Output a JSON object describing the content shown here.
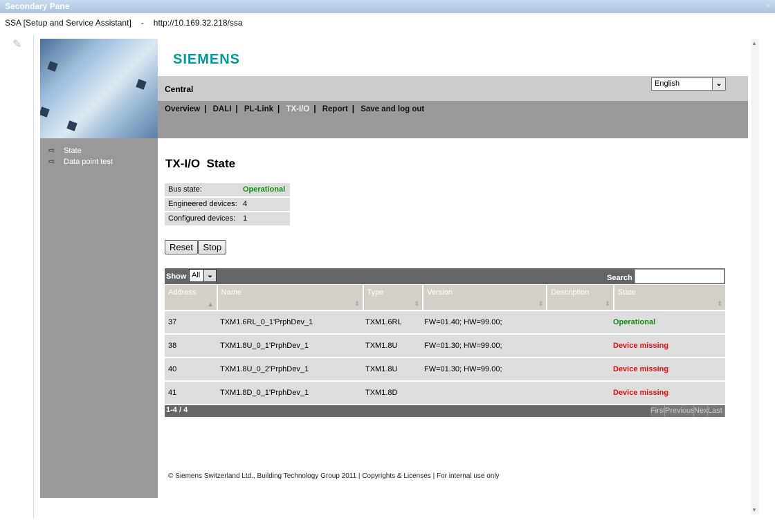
{
  "window": {
    "title": "Secondary Pane",
    "close": "×"
  },
  "address": {
    "app": "SSA [Setup and Service Assistant]",
    "dash": "-",
    "url": "http://10.169.32.218/ssa"
  },
  "logo": "SIEMENS",
  "header": {
    "site": "Central",
    "language": "English"
  },
  "nav": [
    {
      "label": "Overview"
    },
    {
      "label": "DALI"
    },
    {
      "label": "PL-Link"
    },
    {
      "label": "TX-I/O",
      "active": true
    },
    {
      "label": "Report"
    },
    {
      "label": "Save and log out"
    }
  ],
  "nav_sep": "|",
  "sidebar": {
    "items": [
      {
        "label": "State"
      },
      {
        "label": "Data point test"
      }
    ]
  },
  "page": {
    "title": "TX-I/O  State"
  },
  "info": [
    {
      "label": "Bus state:",
      "value": "Operational"
    },
    {
      "label": "Engineered devices:",
      "value": "4"
    },
    {
      "label": "Configured devices:",
      "value": "1"
    }
  ],
  "buttons": {
    "reset": "Reset",
    "stop": "Stop"
  },
  "table": {
    "show_label": "Show",
    "show_value": "All",
    "search_label": "Search",
    "search_value": "",
    "columns": [
      "Address",
      "Name",
      "Type",
      "Version",
      "Description",
      "State"
    ],
    "rows": [
      {
        "address": "37",
        "name": "TXM1.6RL_0_1'PrphDev_1",
        "type": "TXM1.6RL",
        "version": "FW=01.40; HW=99.00;",
        "description": "",
        "state": "Operational"
      },
      {
        "address": "38",
        "name": "TXM1.8U_0_1'PrphDev_1",
        "type": "TXM1.8U",
        "version": "FW=01.30; HW=99.00;",
        "description": "",
        "state": "Device missing"
      },
      {
        "address": "40",
        "name": "TXM1.8U_0_2'PrphDev_1",
        "type": "TXM1.8U",
        "version": "FW=01.30; HW=99.00;",
        "description": "",
        "state": "Device missing"
      },
      {
        "address": "41",
        "name": "TXM1.8D_0_1'PrphDev_1",
        "type": "TXM1.8D",
        "version": "",
        "description": "",
        "state": "Device missing"
      }
    ],
    "range": "1-4 / 4",
    "pager": [
      "First",
      "Previous",
      "Next",
      "Last"
    ]
  },
  "footer": "© Siemens Switzerland Ltd., Building Technology Group 2011 | Copyrights & Licenses | For internal use only",
  "colors": {
    "brand": "#009999",
    "ok": "#128a12",
    "error": "#e01010"
  }
}
